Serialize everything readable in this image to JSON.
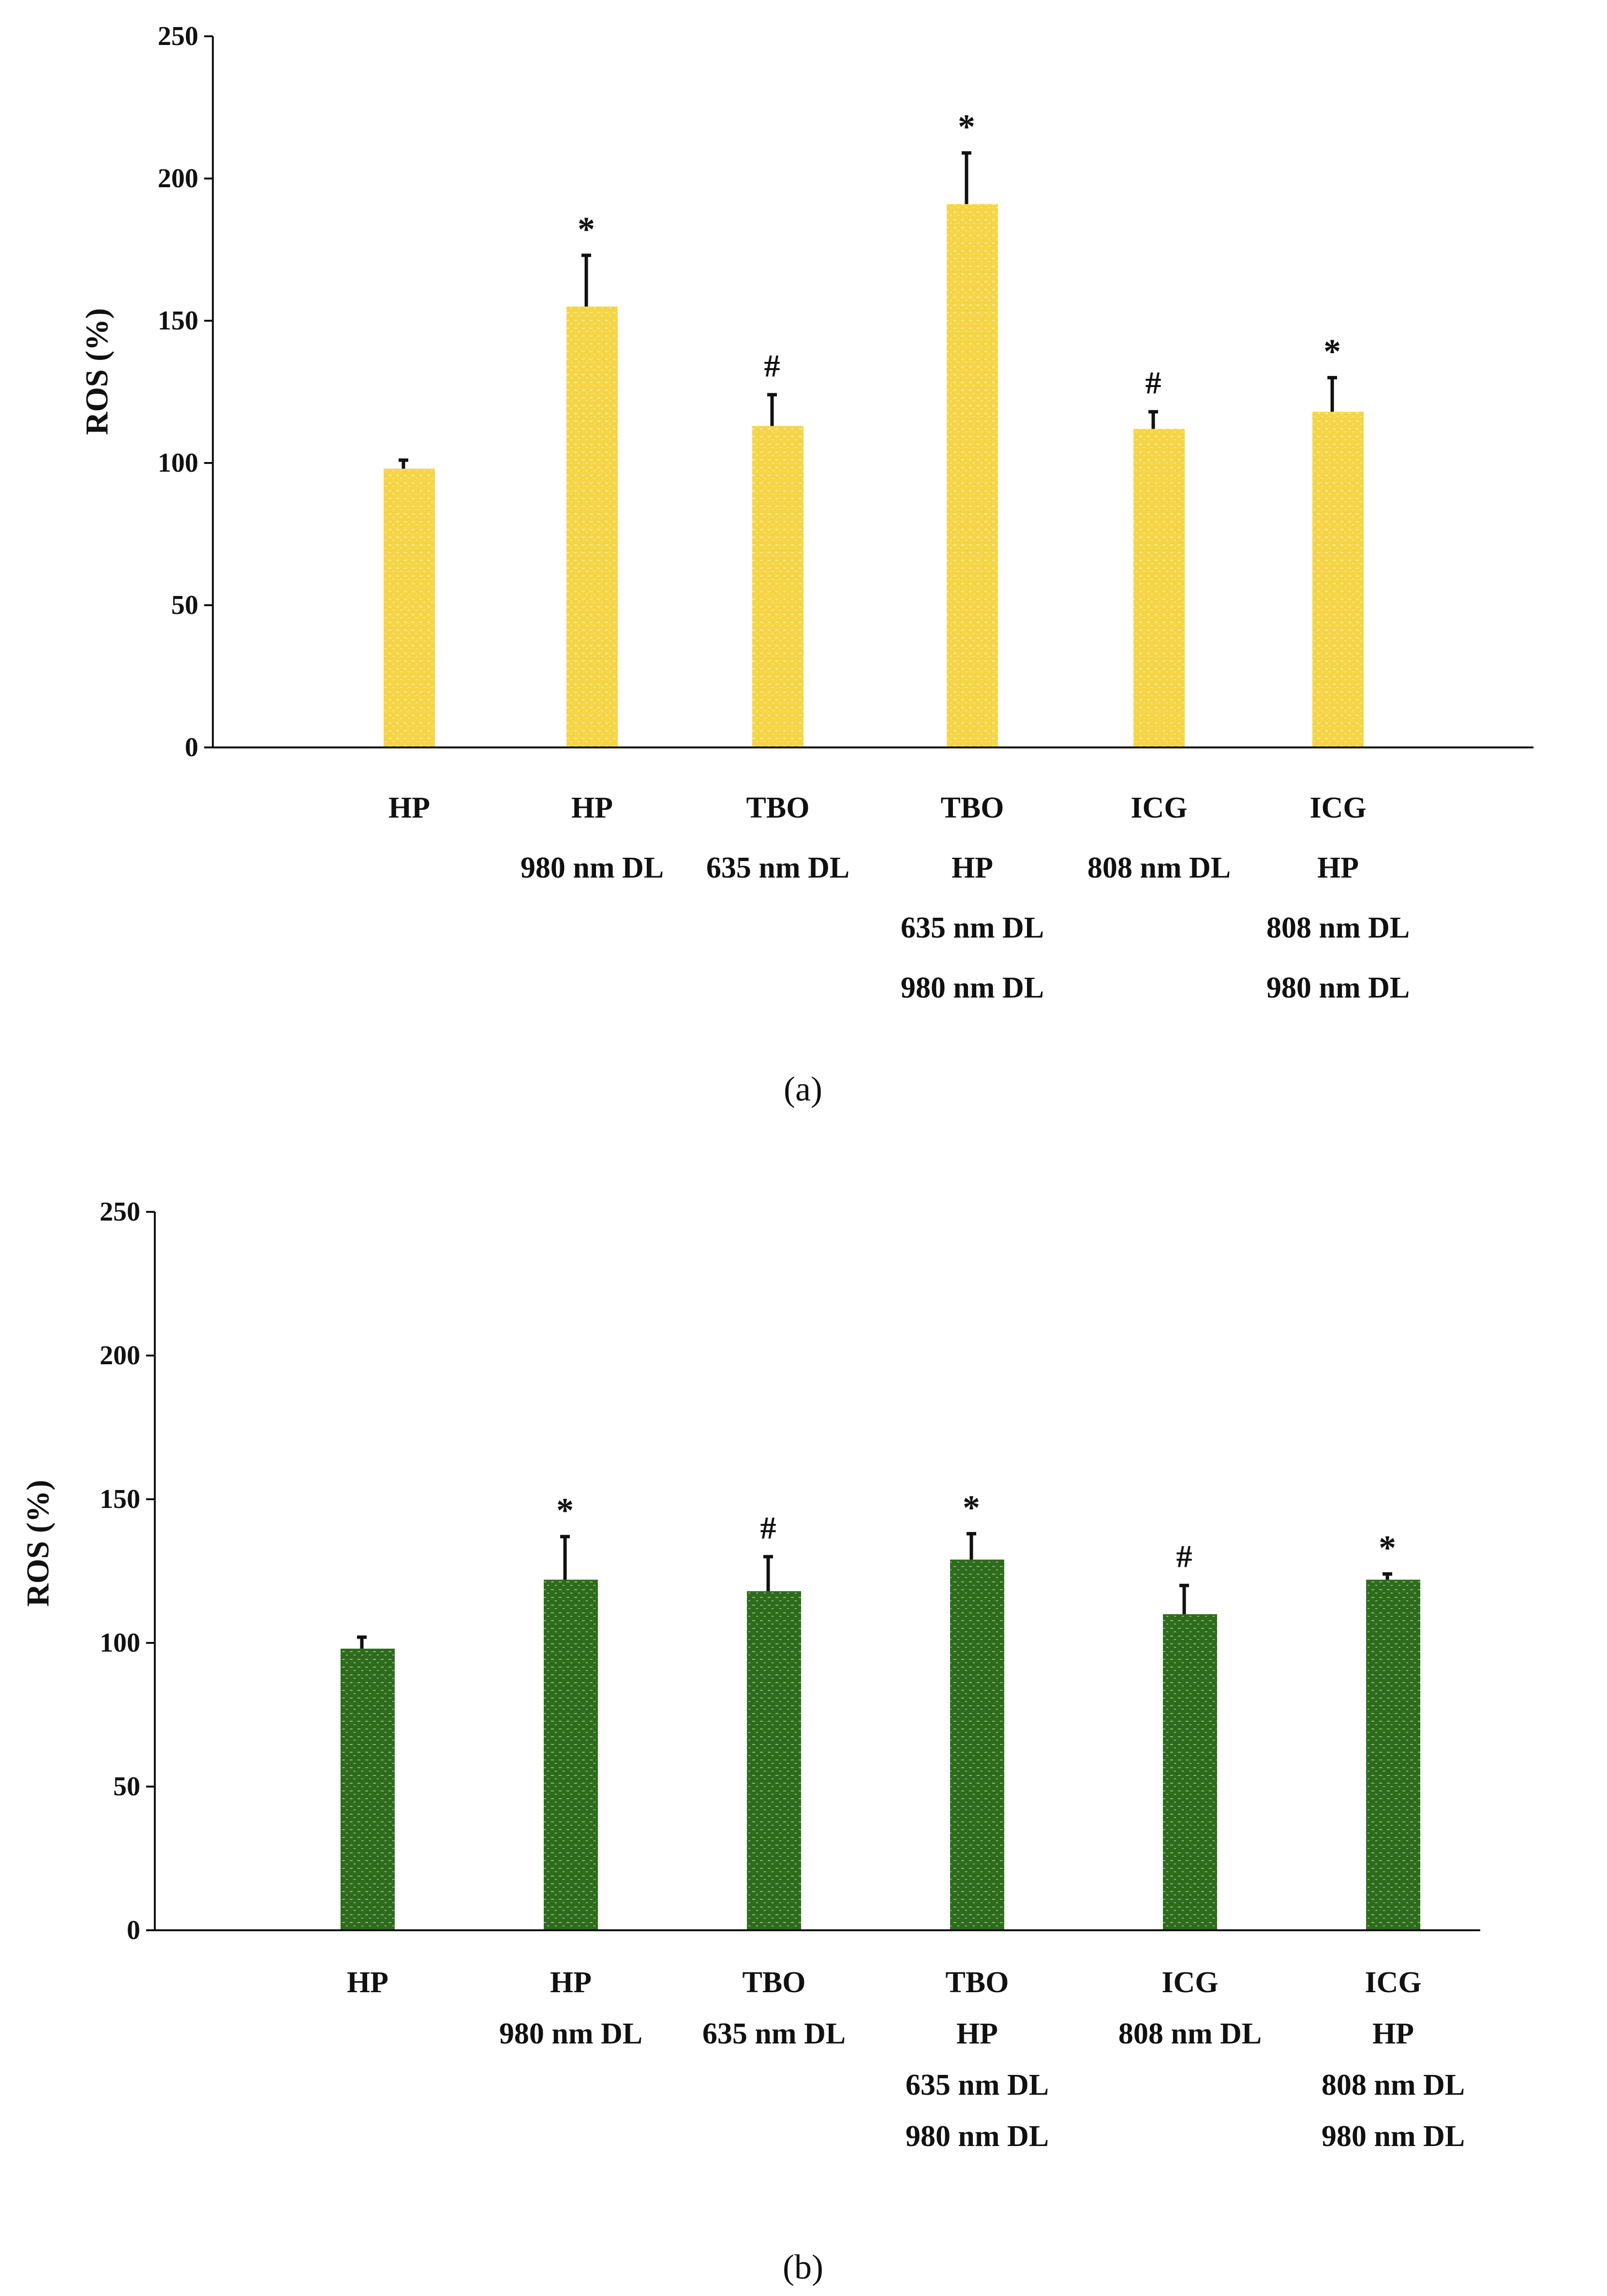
{
  "chart_data": [
    {
      "panel": "a",
      "type": "bar",
      "ylabel": "ROS (%)",
      "ylim": [
        0,
        250
      ],
      "yticks": [
        0,
        50,
        100,
        150,
        200,
        250
      ],
      "categories": [
        [
          "HP"
        ],
        [
          "HP",
          "980 nm DL"
        ],
        [
          "TBO",
          "635 nm DL"
        ],
        [
          "TBO",
          "HP",
          "635 nm DL",
          "980 nm DL"
        ],
        [
          "ICG",
          "808 nm DL"
        ],
        [
          "ICG",
          "HP",
          "808 nm DL",
          "980 nm DL"
        ]
      ],
      "values": [
        98,
        155,
        113,
        191,
        112,
        118
      ],
      "errors": [
        3,
        18,
        11,
        18,
        6,
        12
      ],
      "annotations": [
        "",
        "*",
        "#",
        "*",
        "#",
        "*"
      ],
      "bar_color": "#F5D547",
      "bar_dot_color": "#FBE88A"
    },
    {
      "panel": "b",
      "type": "bar",
      "ylabel": "ROS (%)",
      "ylim": [
        0,
        250
      ],
      "yticks": [
        0,
        50,
        100,
        150,
        200,
        250
      ],
      "categories": [
        [
          "HP"
        ],
        [
          "HP",
          "980 nm DL"
        ],
        [
          "TBO",
          "635 nm DL"
        ],
        [
          "TBO",
          "HP",
          "635 nm DL",
          "980 nm DL"
        ],
        [
          "ICG",
          "808 nm DL"
        ],
        [
          "ICG",
          "HP",
          "808 nm DL",
          "980 nm DL"
        ]
      ],
      "values": [
        98,
        122,
        118,
        129,
        110,
        122
      ],
      "errors": [
        4,
        15,
        12,
        9,
        10,
        2
      ],
      "annotations": [
        "",
        "*",
        "#",
        "*",
        "#",
        "*"
      ],
      "bar_color": "#2E6B1F",
      "bar_dot_color": "#8FBF6A"
    }
  ],
  "captions": {
    "a": "(a)",
    "b": "(b)"
  }
}
